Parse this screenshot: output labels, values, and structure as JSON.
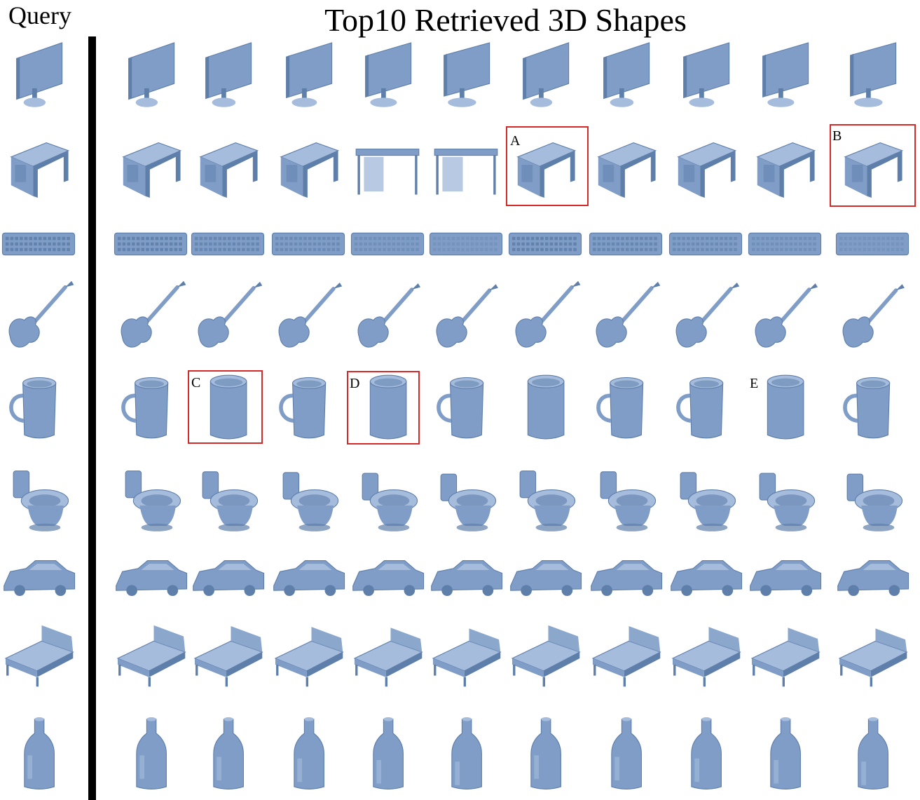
{
  "headers": {
    "query": "Query",
    "retrieved": "Top10 Retrieved 3D Shapes"
  },
  "rows": [
    {
      "category": "monitor",
      "query": "monitor",
      "results": [
        "monitor",
        "monitor",
        "monitor",
        "monitor",
        "monitor",
        "monitor",
        "monitor",
        "monitor",
        "monitor",
        "monitor"
      ]
    },
    {
      "category": "desk",
      "query": "desk",
      "results": [
        "desk",
        "desk",
        "desk",
        "table",
        "table",
        "desk",
        "desk",
        "desk",
        "desk",
        "desk"
      ]
    },
    {
      "category": "keyboard",
      "query": "keyboard",
      "results": [
        "keyboard",
        "keyboard",
        "keyboard",
        "keyboard",
        "keyboard",
        "keyboard",
        "keyboard",
        "keyboard",
        "keyboard",
        "keyboard"
      ]
    },
    {
      "category": "guitar",
      "query": "guitar",
      "results": [
        "guitar",
        "guitar",
        "guitar",
        "guitar",
        "guitar",
        "guitar",
        "guitar",
        "guitar",
        "guitar",
        "guitar"
      ]
    },
    {
      "category": "cup",
      "query": "cup",
      "results": [
        "cup",
        "cylinder",
        "cup",
        "cylinder",
        "cup",
        "cylinder",
        "cup",
        "cup",
        "cylinder",
        "cup"
      ]
    },
    {
      "category": "toilet",
      "query": "toilet",
      "results": [
        "toilet",
        "toilet",
        "toilet",
        "toilet",
        "toilet",
        "toilet",
        "toilet",
        "toilet",
        "toilet",
        "toilet"
      ]
    },
    {
      "category": "car",
      "query": "car",
      "results": [
        "car",
        "car",
        "car",
        "car",
        "car",
        "car",
        "car",
        "car",
        "car",
        "car"
      ]
    },
    {
      "category": "bed",
      "query": "bed",
      "results": [
        "bed",
        "bed",
        "bed",
        "bed",
        "bed",
        "bed",
        "bed",
        "bed",
        "bed",
        "bed"
      ]
    },
    {
      "category": "bottle",
      "query": "bottle",
      "results": [
        "bottle",
        "bottle",
        "bottle",
        "bottle",
        "bottle",
        "bottle",
        "bottle",
        "bottle",
        "bottle",
        "bottle"
      ]
    }
  ],
  "highlights": [
    {
      "label": "A",
      "row": 1,
      "col": 5,
      "boxed": true
    },
    {
      "label": "B",
      "row": 1,
      "col": 9,
      "boxed": true
    },
    {
      "label": "C",
      "row": 4,
      "col": 1,
      "boxed": true
    },
    {
      "label": "D",
      "row": 4,
      "col": 3,
      "boxed": true
    },
    {
      "label": "E",
      "row": 4,
      "col": 8,
      "boxed": false
    }
  ],
  "colors": {
    "shape_fill": "#7f9dc6",
    "shape_light": "#a5bcdc",
    "shape_dark": "#5f7fab",
    "highlight_border": "#d62a2a",
    "divider": "#000000"
  }
}
